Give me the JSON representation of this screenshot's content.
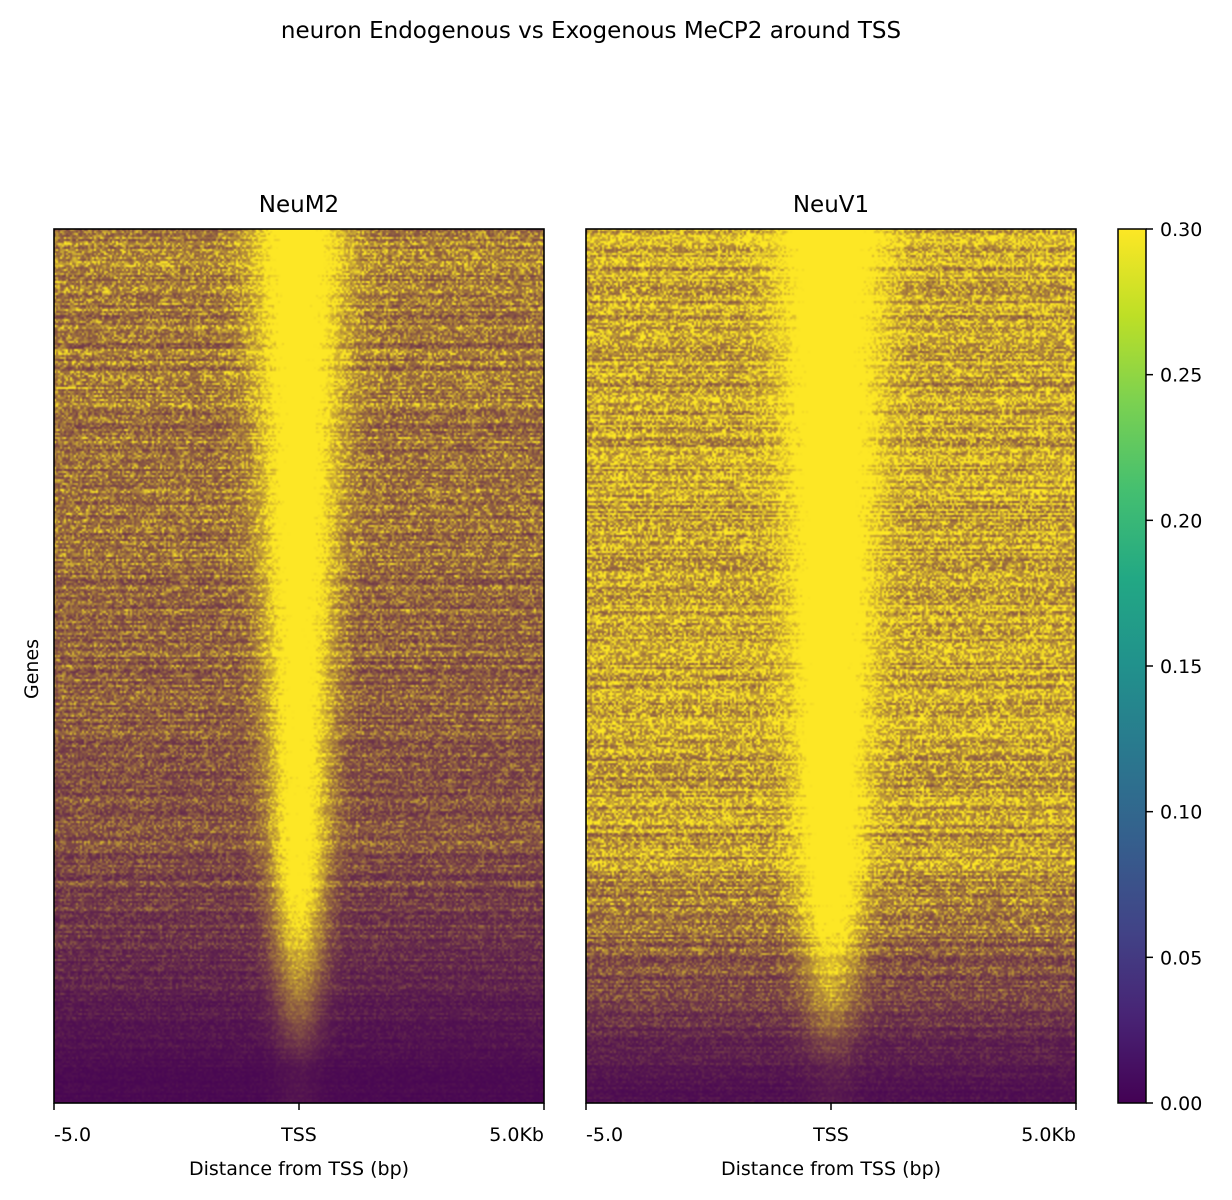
{
  "chart_data": {
    "type": "heatmap",
    "title": "neuron Endogenous vs Exogenous MeCP2 around TSS",
    "ylabel": "Genes",
    "colormap": "viridis",
    "colorbar": {
      "range": [
        0.0,
        0.3
      ],
      "ticks": [
        "0.00",
        "0.05",
        "0.10",
        "0.15",
        "0.20",
        "0.25",
        "0.30"
      ]
    },
    "panels": [
      {
        "name": "NeuM2",
        "xlabel": "Distance from TSS (bp)",
        "xticks": [
          "-5.0",
          "TSS",
          "5.0Kb"
        ],
        "x_range_bp": [
          -5000,
          5000
        ],
        "background_level": 0.2,
        "peak_level": 0.3,
        "peak_width_bp": [
          600,
          300
        ]
      },
      {
        "name": "NeuV1",
        "xlabel": "Distance from TSS (bp)",
        "xticks": [
          "-5.0",
          "TSS",
          "5.0Kb"
        ],
        "x_range_bp": [
          -5000,
          5000
        ],
        "background_level": 0.27,
        "peak_level": 0.3,
        "peak_width_bp": [
          700,
          350
        ]
      }
    ]
  }
}
